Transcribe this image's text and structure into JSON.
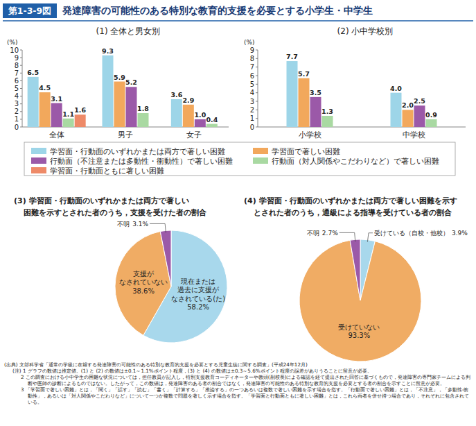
{
  "figure_label": "第1-3-9図",
  "title": "発達障害の可能性のある特別な教育的支援を必要とする小学生・中学生",
  "chart_data": [
    {
      "type": "bar",
      "title": "(1) 全体と男女別",
      "y_label": "(%)",
      "categories": [
        "全体",
        "男子",
        "女子"
      ],
      "series": [
        {
          "name": "学習面・行動面のいずれかまたは両方で著しい困難",
          "color": "#9dd5e8",
          "values": [
            6.5,
            9.3,
            3.6
          ]
        },
        {
          "name": "学習面で著しい困難",
          "color": "#f2a85c",
          "values": [
            4.5,
            5.9,
            2.9
          ]
        },
        {
          "name": "行動面（不注意または多動性・衝動性）で著しい困難",
          "color": "#9b59a8",
          "values": [
            3.1,
            5.2,
            1.0
          ],
          "value_labels": [
            "3.1",
            "5.2",
            "1.0"
          ]
        },
        {
          "name": "行動面（対人関係やこだわりなど）で著しい困難",
          "color": "#a9d9a2",
          "values": [
            1.1,
            1.8,
            0.4
          ]
        },
        {
          "name": "学習面・行動面ともに著しい困難",
          "color": "#ee8a68",
          "values": [
            1.6,
            null,
            null
          ]
        }
      ],
      "ylim": [
        0,
        10
      ],
      "yticks": [
        0,
        1,
        2,
        3,
        4,
        5,
        6,
        7,
        8,
        9,
        10
      ],
      "grid": false,
      "data_labels": true,
      "legend": "bottom"
    },
    {
      "type": "bar",
      "title": "(2) 小中学校別",
      "y_label": "(%)",
      "categories": [
        "小学校",
        "中学校"
      ],
      "series": [
        {
          "color": "#9dd5e8",
          "values": [
            7.7,
            4.0
          ],
          "value_labels": [
            "7.7",
            "4.0"
          ]
        },
        {
          "color": "#f2a85c",
          "values": [
            5.7,
            2.0
          ],
          "value_labels": [
            "5.7",
            "2.0"
          ]
        },
        {
          "color": "#9b59a8",
          "values": [
            3.5,
            2.5
          ]
        },
        {
          "color": "#a9d9a2",
          "values": [
            1.3,
            0.9
          ]
        }
      ],
      "ylim": [
        0,
        9
      ],
      "yticks": [
        0,
        1,
        2,
        3,
        4,
        5,
        6,
        7,
        8,
        9
      ],
      "grid": false,
      "data_labels": true
    },
    {
      "type": "pie",
      "title": "(3) 学習面・行動面のいずれかまたは両方で著しい\n困難を示すとされた者のうち，支援を受けた者の割合",
      "categories": [
        "現在または\n過去に支援が\nなされている(た)",
        "支援が\nなされていない",
        "不明"
      ],
      "values": [
        58.2,
        38.6,
        3.1
      ],
      "value_labels": [
        "58.2%",
        "38.6%",
        "3.1%"
      ],
      "colors": [
        "#a8d8ec",
        "#f0ac64",
        "#9b59a8"
      ],
      "data_labels": true
    },
    {
      "type": "pie",
      "title": "(4) 学習面・行動面のいずれかまたは両方で著しい困難を示す\nとされた者のうち，通級による指導を受けている者の割合",
      "categories": [
        "受けている（自校・他校）",
        "受けていない",
        "不明"
      ],
      "values": [
        3.9,
        93.3,
        2.7
      ],
      "value_labels": [
        "3.9%",
        "93.3%",
        "2.7%"
      ],
      "colors": [
        "#a8d8ec",
        "#f0ac64",
        "#9b59a8"
      ],
      "data_labels": true
    }
  ],
  "source": "(出典) 文部科学省「通常の学級に在籍する発達障害の可能性のある特別な教育的支援を必要とする児童生徒に関する調査」(平成24年12月)",
  "notes": [
    "(注) 1 グラフの数値は推定値。(1) と (2) の数値は±0.1～1.1%ポイント程度，(3) と (4) の数値は±0.3～5.6%ポイント程度の誤差がありうることに留意が必要。",
    "2 この調査における小中学生の困難な状況については，担任教員が記入し，特別支援教育コーディネーターや教頭(副校長)による確認を経て提出された回答に基づくもので，発達障害の専門家チームによる判断や医師の診断によるものではない。したがって，この数値は，発達障害のある者の割合ではなく，発達障害の可能性のある特別な教育的支援を必要とする者の割合を示すことに留意が必要。",
    "3 「学習面で著しい困難」とは，「聞く」「話す」「読む」「書く」「計算する」「推論する」の一つあるいは複数で著しい困難を示す場合を指す。「行動面で著しい困難」とは，「不注意」，「多動性-衝動性」，あるいは「対人関係やこだわりなど」について一つか複数で問題を著しく示す場合を指す。「学習面と行動面ともに著しい困難」とは，これら両者を併せ持つ場合であり，それぞれに包含されている。"
  ]
}
